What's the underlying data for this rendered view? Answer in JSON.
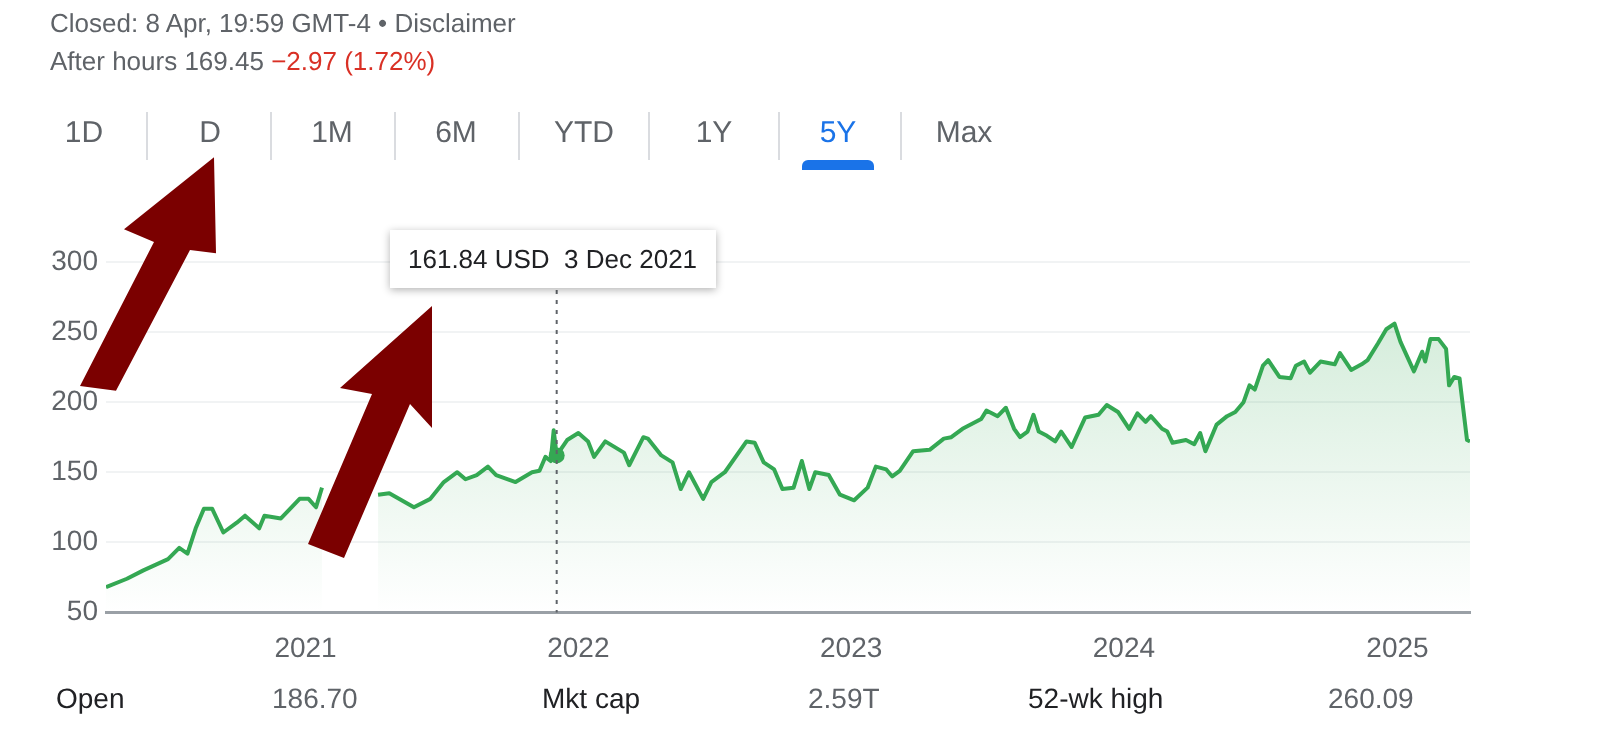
{
  "chart_data": {
    "type": "area",
    "annotations": [
      "Closed: 8 Apr, 19:59 GMT-4 • Disclaimer",
      "After hours 169.45",
      "−2.97 (1.72%)",
      "1D",
      "D",
      "1M",
      "6M",
      "YTD",
      "1Y",
      "5Y",
      "Max",
      "Open",
      "186.70",
      "Mkt cap",
      "2.59T",
      "52-wk high",
      "260.09",
      "161.84 USD  3 Dec 2021"
    ],
    "x": [
      "2020-04-09",
      "2020-05-07",
      "2020-05-29",
      "2020-07-01",
      "2020-07-16",
      "2020-07-27",
      "2020-08-07",
      "2020-08-18",
      "2020-08-29",
      "2020-09-13",
      "2020-10-01",
      "2020-10-12",
      "2020-10-31",
      "2020-11-07",
      "2020-11-29",
      "2020-12-24",
      "2021-01-05",
      "2021-01-15",
      "2021-01-23",
      "2021-02-03",
      "2021-03-21",
      "2021-04-08",
      "2021-04-23",
      "2021-05-26",
      "2021-06-17",
      "2021-07-05",
      "2021-07-23",
      "2021-08-03",
      "2021-08-18",
      "2021-09-02",
      "2021-09-13",
      "2021-10-09",
      "2021-10-31",
      "2021-11-10",
      "2021-11-18",
      "2021-11-25",
      "2021-11-29",
      "2021-12-03",
      "2021-12-17",
      "2022-01-01",
      "2022-01-14",
      "2022-01-22",
      "2022-02-06",
      "2022-03-03",
      "2022-03-10",
      "2022-03-29",
      "2022-04-04",
      "2022-04-22",
      "2022-05-07",
      "2022-05-18",
      "2022-05-29",
      "2022-06-17",
      "2022-06-28",
      "2022-07-16",
      "2022-08-14",
      "2022-08-25",
      "2022-09-06",
      "2022-09-20",
      "2022-10-01",
      "2022-10-16",
      "2022-10-27",
      "2022-11-06",
      "2022-11-14",
      "2022-12-02",
      "2022-12-17",
      "2023-01-05",
      "2023-01-23",
      "2023-02-03",
      "2023-02-17",
      "2023-02-25",
      "2023-03-07",
      "2023-03-25",
      "2023-04-16",
      "2023-05-05",
      "2023-05-15",
      "2023-05-30",
      "2023-06-24",
      "2023-07-01",
      "2023-07-16",
      "2023-07-27",
      "2023-08-07",
      "2023-08-15",
      "2023-08-25",
      "2023-09-02",
      "2023-09-09",
      "2023-09-20",
      "2023-10-01",
      "2023-10-09",
      "2023-10-23",
      "2023-11-10",
      "2023-11-28",
      "2023-12-09",
      "2023-12-24",
      "2024-01-08",
      "2024-01-19",
      "2024-01-30",
      "2024-02-06",
      "2024-02-21",
      "2024-02-28",
      "2024-03-06",
      "2024-03-24",
      "2024-04-04",
      "2024-04-12",
      "2024-04-19",
      "2024-05-04",
      "2024-05-18",
      "2024-05-29",
      "2024-06-09",
      "2024-06-17",
      "2024-06-24",
      "2024-07-05",
      "2024-07-12",
      "2024-07-27",
      "2024-08-11",
      "2024-08-18",
      "2024-08-29",
      "2024-09-06",
      "2024-09-20",
      "2024-10-09",
      "2024-10-16",
      "2024-10-31",
      "2024-11-14",
      "2024-11-22",
      "2024-12-06",
      "2024-12-17",
      "2024-12-28",
      "2025-01-05",
      "2025-01-23",
      "2025-02-03",
      "2025-02-07",
      "2025-02-14",
      "2025-02-25",
      "2025-03-07",
      "2025-03-11",
      "2025-03-18",
      "2025-03-25",
      "2025-04-04",
      "2025-04-08"
    ],
    "series": [
      {
        "color": "#34a853",
        "values": [
          68,
          74,
          80,
          88,
          96,
          92,
          110,
          124,
          124,
          107,
          114,
          119,
          110,
          119,
          117,
          131,
          131,
          125,
          139,
          null,
          null,
          134,
          135,
          125,
          131,
          143,
          150,
          145,
          148,
          154,
          148,
          143,
          150,
          151,
          161,
          158,
          180,
          162,
          173,
          178,
          172,
          161,
          172,
          164,
          155,
          175,
          174,
          162,
          157,
          138,
          150,
          131,
          143,
          150,
          172,
          171,
          157,
          152,
          138,
          139,
          158,
          138,
          150,
          148,
          134,
          130,
          139,
          154,
          152,
          147,
          151,
          165,
          166,
          174,
          175,
          181,
          188,
          194,
          190,
          196,
          181,
          175,
          179,
          191,
          179,
          176,
          172,
          179,
          168,
          189,
          191,
          198,
          193,
          181,
          192,
          186,
          190,
          181,
          179,
          171,
          173,
          170,
          178,
          165,
          184,
          190,
          193,
          200,
          212,
          209,
          226,
          230,
          218,
          217,
          226,
          229,
          221,
          229,
          227,
          235,
          223,
          227,
          230,
          242,
          252,
          256,
          243,
          222,
          236,
          229,
          245,
          245,
          238,
          212,
          218,
          217,
          173,
          172
        ]
      }
    ],
    "xlim": [
      "2020-04-09",
      "2025-04-08"
    ],
    "xticks": [
      {
        "value": "2021-01-01",
        "label": "2021"
      },
      {
        "value": "2022-01-01",
        "label": "2022"
      },
      {
        "value": "2023-01-01",
        "label": "2023"
      },
      {
        "value": "2024-01-01",
        "label": "2024"
      },
      {
        "value": "2025-01-01",
        "label": "2025"
      }
    ],
    "ylim": [
      50,
      300
    ],
    "yticks": [
      50,
      100,
      150,
      200,
      250,
      300
    ],
    "grid": "y",
    "legend": false,
    "marker": "none",
    "line_style": "solid",
    "ref_lines": [
      {
        "axis": "x",
        "value": "2021-12-03",
        "line_style": "dotted",
        "color": "#5f6368"
      }
    ]
  }
}
